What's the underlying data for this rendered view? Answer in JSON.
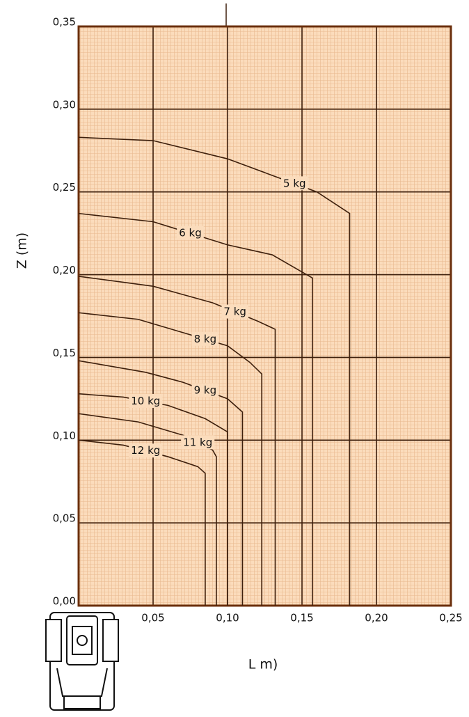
{
  "chart_data": {
    "type": "line",
    "xlabel": "L m)",
    "ylabel": "Z (m)",
    "xlim": [
      0,
      0.25
    ],
    "ylim": [
      0,
      0.35
    ],
    "xticks": [
      {
        "value": 0.05,
        "label": "0,05"
      },
      {
        "value": 0.1,
        "label": "0,10"
      },
      {
        "value": 0.15,
        "label": "0,15"
      },
      {
        "value": 0.2,
        "label": "0,20"
      },
      {
        "value": 0.25,
        "label": "0,25"
      }
    ],
    "yticks": [
      {
        "value": 0,
        "label": "0,00"
      },
      {
        "value": 0.05,
        "label": "0,05"
      },
      {
        "value": 0.1,
        "label": "0,10"
      },
      {
        "value": 0.15,
        "label": "0,15"
      },
      {
        "value": 0.2,
        "label": "0,20"
      },
      {
        "value": 0.25,
        "label": "0,25"
      },
      {
        "value": 0.3,
        "label": "0,30"
      },
      {
        "value": 0.35,
        "label": "0,35"
      }
    ],
    "grid": true,
    "color": "#3d1f0c",
    "series": [
      {
        "name": "5 kg",
        "x": [
          0,
          0.05,
          0.1,
          0.13,
          0.16,
          0.182,
          0.182
        ],
        "values": [
          0.283,
          0.281,
          0.27,
          0.26,
          0.25,
          0.237,
          0
        ]
      },
      {
        "name": "6  kg",
        "x": [
          0,
          0.05,
          0.1,
          0.13,
          0.157,
          0.157
        ],
        "values": [
          0.237,
          0.232,
          0.218,
          0.212,
          0.198,
          0
        ]
      },
      {
        "name": "7 kg",
        "x": [
          0,
          0.05,
          0.09,
          0.12,
          0.132,
          0.132
        ],
        "values": [
          0.199,
          0.193,
          0.183,
          0.172,
          0.167,
          0
        ]
      },
      {
        "name": "8 kg",
        "x": [
          0,
          0.04,
          0.07,
          0.1,
          0.115,
          0.123,
          0.123
        ],
        "values": [
          0.177,
          0.173,
          0.165,
          0.157,
          0.147,
          0.14,
          0
        ]
      },
      {
        "name": "9 kg",
        "x": [
          0,
          0.045,
          0.07,
          0.1,
          0.11,
          0.11
        ],
        "values": [
          0.148,
          0.141,
          0.135,
          0.125,
          0.117,
          0
        ]
      },
      {
        "name": "10 kg",
        "x": [
          0,
          0.03,
          0.06,
          0.085,
          0.1,
          0.1
        ],
        "values": [
          0.128,
          0.126,
          0.121,
          0.113,
          0.105,
          0
        ]
      },
      {
        "name": "11 kg",
        "x": [
          0,
          0.04,
          0.07,
          0.09,
          0.0925,
          0.0925
        ],
        "values": [
          0.116,
          0.111,
          0.103,
          0.094,
          0.09,
          0
        ]
      },
      {
        "name": "12 kg",
        "x": [
          0,
          0.03,
          0.06,
          0.08,
          0.085,
          0.085
        ],
        "values": [
          0.1,
          0.097,
          0.09,
          0.084,
          0.08,
          0
        ]
      }
    ]
  }
}
